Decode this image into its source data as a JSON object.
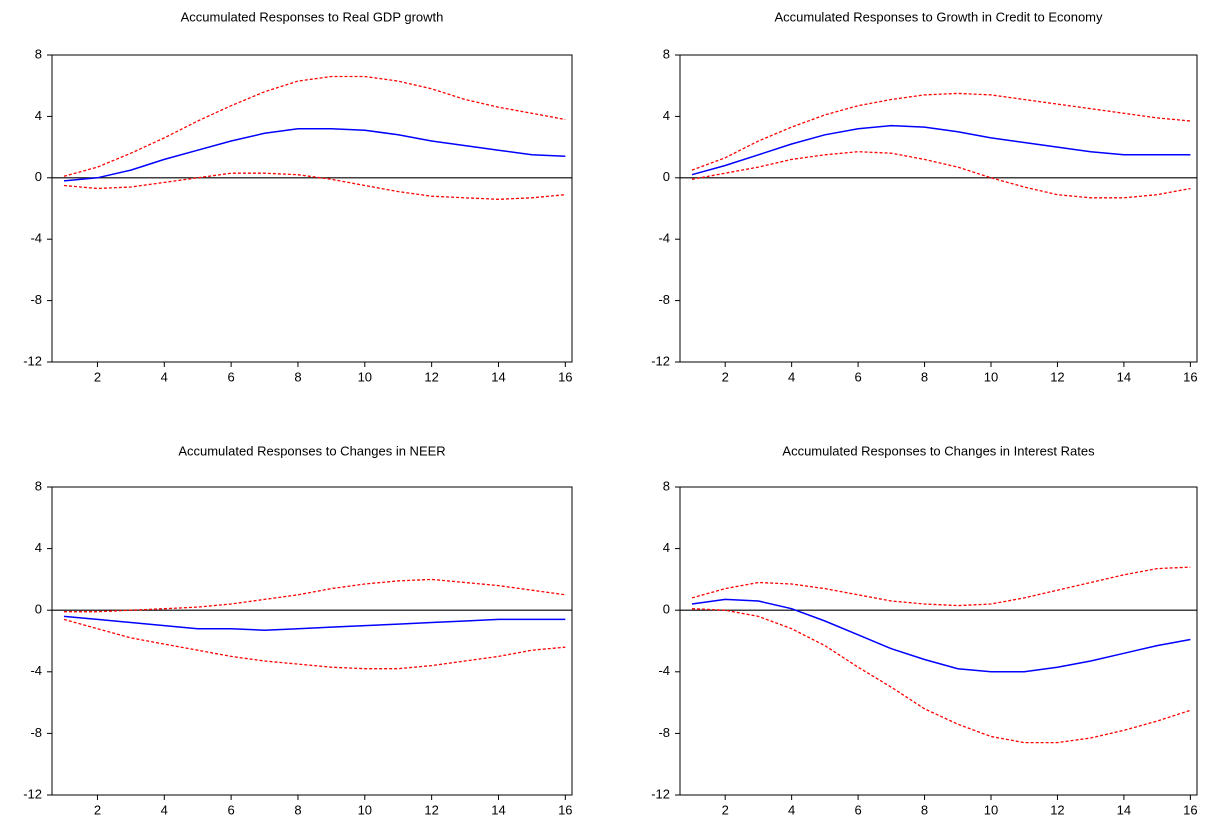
{
  "chart_data": [
    {
      "type": "line",
      "title": "Accumulated Responses to Real GDP growth",
      "x": [
        1,
        2,
        3,
        4,
        5,
        6,
        7,
        8,
        9,
        10,
        11,
        12,
        13,
        14,
        15,
        16
      ],
      "xlim": [
        0.64,
        16.2
      ],
      "ylim": [
        -12,
        8
      ],
      "xticks": [
        2,
        4,
        6,
        8,
        10,
        12,
        14,
        16
      ],
      "yticks": [
        -12,
        -8,
        -4,
        0,
        4,
        8
      ],
      "zero_line": true,
      "series": [
        {
          "color": "#ff0000",
          "style": "dashed",
          "values": [
            0.1,
            0.7,
            1.6,
            2.6,
            3.7,
            4.7,
            5.6,
            6.3,
            6.6,
            6.6,
            6.3,
            5.8,
            5.1,
            4.6,
            4.2,
            3.8
          ]
        },
        {
          "color": "#0000ff",
          "style": "solid",
          "values": [
            -0.2,
            0,
            0.5,
            1.2,
            1.8,
            2.4,
            2.9,
            3.2,
            3.2,
            3.1,
            2.8,
            2.4,
            2.1,
            1.8,
            1.5,
            1.4
          ]
        },
        {
          "color": "#ff0000",
          "style": "dashed",
          "values": [
            -0.5,
            -0.7,
            -0.6,
            -0.3,
            0,
            0.3,
            0.3,
            0.2,
            -0.1,
            -0.5,
            -0.9,
            -1.2,
            -1.3,
            -1.4,
            -1.3,
            -1.1
          ]
        }
      ]
    },
    {
      "type": "line",
      "title": "Accumulated Responses to Growth in Credit to Economy",
      "x": [
        1,
        2,
        3,
        4,
        5,
        6,
        7,
        8,
        9,
        10,
        11,
        12,
        13,
        14,
        15,
        16
      ],
      "xlim": [
        0.64,
        16.2
      ],
      "ylim": [
        -12,
        8
      ],
      "xticks": [
        2,
        4,
        6,
        8,
        10,
        12,
        14,
        16
      ],
      "yticks": [
        -12,
        -8,
        -4,
        0,
        4,
        8
      ],
      "zero_line": true,
      "series": [
        {
          "color": "#ff0000",
          "style": "dashed",
          "values": [
            0.5,
            1.3,
            2.4,
            3.3,
            4.1,
            4.7,
            5.1,
            5.4,
            5.5,
            5.4,
            5.1,
            4.8,
            4.5,
            4.2,
            3.9,
            3.7
          ]
        },
        {
          "color": "#0000ff",
          "style": "solid",
          "values": [
            0.2,
            0.8,
            1.5,
            2.2,
            2.8,
            3.2,
            3.4,
            3.3,
            3.0,
            2.6,
            2.3,
            2.0,
            1.7,
            1.5,
            1.5,
            1.5
          ]
        },
        {
          "color": "#ff0000",
          "style": "dashed",
          "values": [
            -0.1,
            0.3,
            0.7,
            1.2,
            1.5,
            1.7,
            1.6,
            1.2,
            0.7,
            0,
            -0.6,
            -1.1,
            -1.3,
            -1.3,
            -1.1,
            -0.7
          ]
        }
      ]
    },
    {
      "type": "line",
      "title": "Accumulated Responses to Changes in NEER",
      "x": [
        1,
        2,
        3,
        4,
        5,
        6,
        7,
        8,
        9,
        10,
        11,
        12,
        13,
        14,
        15,
        16
      ],
      "xlim": [
        0.64,
        16.2
      ],
      "ylim": [
        -12,
        8
      ],
      "xticks": [
        2,
        4,
        6,
        8,
        10,
        12,
        14,
        16
      ],
      "yticks": [
        -12,
        -8,
        -4,
        0,
        4,
        8
      ],
      "zero_line": true,
      "series": [
        {
          "color": "#ff0000",
          "style": "dashed",
          "values": [
            -0.1,
            -0.1,
            0,
            0.1,
            0.2,
            0.4,
            0.7,
            1.0,
            1.4,
            1.7,
            1.9,
            2.0,
            1.8,
            1.6,
            1.3,
            1.0
          ]
        },
        {
          "color": "#0000ff",
          "style": "solid",
          "values": [
            -0.4,
            -0.6,
            -0.8,
            -1.0,
            -1.2,
            -1.2,
            -1.3,
            -1.2,
            -1.1,
            -1.0,
            -0.9,
            -0.8,
            -0.7,
            -0.6,
            -0.6,
            -0.6
          ]
        },
        {
          "color": "#ff0000",
          "style": "dashed",
          "values": [
            -0.6,
            -1.2,
            -1.8,
            -2.2,
            -2.6,
            -3.0,
            -3.3,
            -3.5,
            -3.7,
            -3.8,
            -3.8,
            -3.6,
            -3.3,
            -3.0,
            -2.6,
            -2.4
          ]
        }
      ]
    },
    {
      "type": "line",
      "title": "Accumulated Responses to Changes in Interest Rates",
      "x": [
        1,
        2,
        3,
        4,
        5,
        6,
        7,
        8,
        9,
        10,
        11,
        12,
        13,
        14,
        15,
        16
      ],
      "xlim": [
        0.64,
        16.2
      ],
      "ylim": [
        -12,
        8
      ],
      "xticks": [
        2,
        4,
        6,
        8,
        10,
        12,
        14,
        16
      ],
      "yticks": [
        -12,
        -8,
        -4,
        0,
        4,
        8
      ],
      "zero_line": true,
      "series": [
        {
          "color": "#ff0000",
          "style": "dashed",
          "values": [
            0.8,
            1.4,
            1.8,
            1.7,
            1.4,
            1.0,
            0.6,
            0.4,
            0.3,
            0.4,
            0.8,
            1.3,
            1.8,
            2.3,
            2.7,
            2.8
          ]
        },
        {
          "color": "#0000ff",
          "style": "solid",
          "values": [
            0.4,
            0.7,
            0.6,
            0.1,
            -0.7,
            -1.6,
            -2.5,
            -3.2,
            -3.8,
            -4.0,
            -4.0,
            -3.7,
            -3.3,
            -2.8,
            -2.3,
            -1.9
          ]
        },
        {
          "color": "#ff0000",
          "style": "dashed",
          "values": [
            0.1,
            0,
            -0.4,
            -1.2,
            -2.3,
            -3.7,
            -5.0,
            -6.4,
            -7.4,
            -8.2,
            -8.6,
            -8.6,
            -8.3,
            -7.8,
            -7.2,
            -6.5
          ]
        }
      ]
    }
  ]
}
